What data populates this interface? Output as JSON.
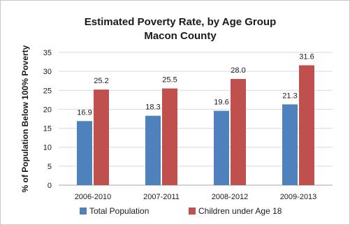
{
  "chart_data": {
    "type": "bar",
    "title": "Estimated Poverty Rate, by Age Group",
    "subtitle": "Macon County",
    "xlabel": "",
    "ylabel": "% of Population Below 100% Poverty",
    "categories": [
      "2006-2010",
      "2007-2011",
      "2008-2012",
      "2009-2013"
    ],
    "series": [
      {
        "name": "Total Population",
        "values": [
          16.9,
          18.3,
          19.6,
          21.3
        ],
        "color": "#4f81bd"
      },
      {
        "name": "Children under Age 18",
        "values": [
          25.2,
          25.5,
          28.0,
          31.6
        ],
        "color": "#c0504d"
      }
    ],
    "ylim": [
      0,
      35
    ],
    "yticks": [
      "0",
      "5",
      "10",
      "15",
      "20",
      "25",
      "30",
      "35"
    ],
    "data_labels": [
      [
        "16.9",
        "18.3",
        "19.6",
        "21.3"
      ],
      [
        "25.2",
        "25.5",
        "28.0",
        "31.6"
      ]
    ],
    "grid": true,
    "legend_position": "bottom"
  }
}
